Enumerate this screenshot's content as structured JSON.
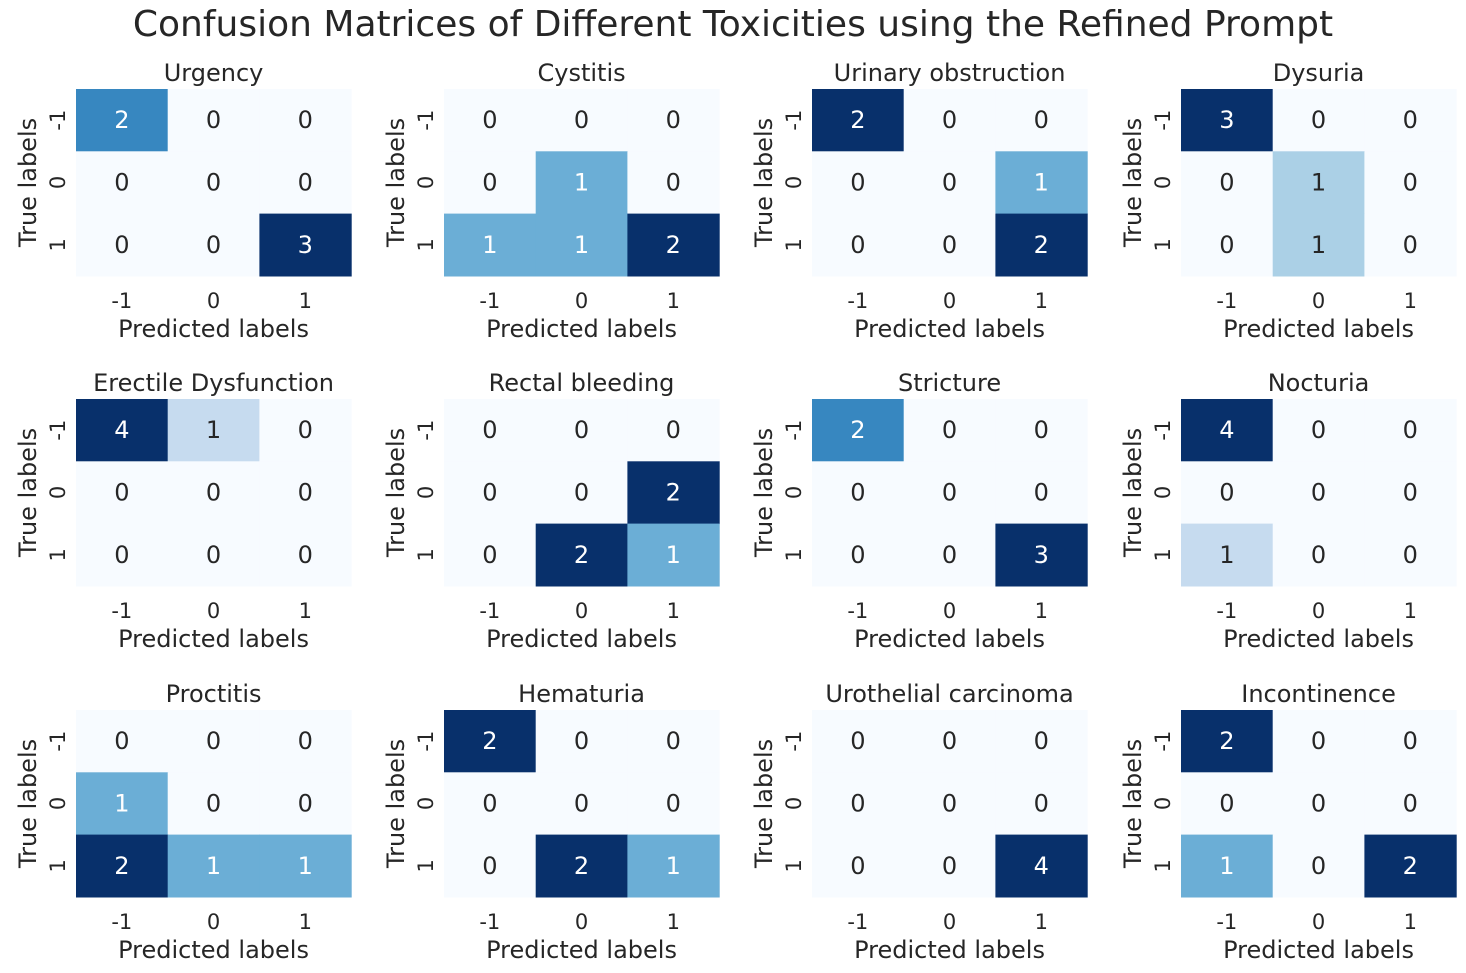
{
  "figure": {
    "title": "Confusion Matrices of Different Toxicities using the Refined Prompt"
  },
  "chart_data": [
    {
      "type": "heatmap",
      "title": "Urgency",
      "xlabel": "Predicted labels",
      "ylabel": "True labels",
      "x_tick_labels": [
        "-1",
        "0",
        "1"
      ],
      "y_tick_labels": [
        "-1",
        "0",
        "1"
      ],
      "matrix": [
        [
          2,
          0,
          0
        ],
        [
          0,
          0,
          0
        ],
        [
          0,
          0,
          3
        ]
      ],
      "colormap": "Blues"
    },
    {
      "type": "heatmap",
      "title": "Cystitis",
      "xlabel": "Predicted labels",
      "ylabel": "True labels",
      "x_tick_labels": [
        "-1",
        "0",
        "1"
      ],
      "y_tick_labels": [
        "-1",
        "0",
        "1"
      ],
      "matrix": [
        [
          0,
          0,
          0
        ],
        [
          0,
          1,
          0
        ],
        [
          1,
          1,
          2
        ]
      ],
      "colormap": "Blues"
    },
    {
      "type": "heatmap",
      "title": "Urinary obstruction",
      "xlabel": "Predicted labels",
      "ylabel": "True labels",
      "x_tick_labels": [
        "-1",
        "0",
        "1"
      ],
      "y_tick_labels": [
        "-1",
        "0",
        "1"
      ],
      "matrix": [
        [
          2,
          0,
          0
        ],
        [
          0,
          0,
          1
        ],
        [
          0,
          0,
          2
        ]
      ],
      "colormap": "Blues"
    },
    {
      "type": "heatmap",
      "title": "Dysuria",
      "xlabel": "Predicted labels",
      "ylabel": "True labels",
      "x_tick_labels": [
        "-1",
        "0",
        "1"
      ],
      "y_tick_labels": [
        "-1",
        "0",
        "1"
      ],
      "matrix": [
        [
          3,
          0,
          0
        ],
        [
          0,
          1,
          0
        ],
        [
          0,
          1,
          0
        ]
      ],
      "colormap": "Blues"
    },
    {
      "type": "heatmap",
      "title": "Erectile Dysfunction",
      "xlabel": "Predicted labels",
      "ylabel": "True labels",
      "x_tick_labels": [
        "-1",
        "0",
        "1"
      ],
      "y_tick_labels": [
        "-1",
        "0",
        "1"
      ],
      "matrix": [
        [
          4,
          1,
          0
        ],
        [
          0,
          0,
          0
        ],
        [
          0,
          0,
          0
        ]
      ],
      "colormap": "Blues"
    },
    {
      "type": "heatmap",
      "title": "Rectal bleeding",
      "xlabel": "Predicted labels",
      "ylabel": "True labels",
      "x_tick_labels": [
        "-1",
        "0",
        "1"
      ],
      "y_tick_labels": [
        "-1",
        "0",
        "1"
      ],
      "matrix": [
        [
          0,
          0,
          0
        ],
        [
          0,
          0,
          2
        ],
        [
          0,
          2,
          1
        ]
      ],
      "colormap": "Blues"
    },
    {
      "type": "heatmap",
      "title": "Stricture",
      "xlabel": "Predicted labels",
      "ylabel": "True labels",
      "x_tick_labels": [
        "-1",
        "0",
        "1"
      ],
      "y_tick_labels": [
        "-1",
        "0",
        "1"
      ],
      "matrix": [
        [
          2,
          0,
          0
        ],
        [
          0,
          0,
          0
        ],
        [
          0,
          0,
          3
        ]
      ],
      "colormap": "Blues"
    },
    {
      "type": "heatmap",
      "title": "Nocturia",
      "xlabel": "Predicted labels",
      "ylabel": "True labels",
      "x_tick_labels": [
        "-1",
        "0",
        "1"
      ],
      "y_tick_labels": [
        "-1",
        "0",
        "1"
      ],
      "matrix": [
        [
          4,
          0,
          0
        ],
        [
          0,
          0,
          0
        ],
        [
          1,
          0,
          0
        ]
      ],
      "colormap": "Blues"
    },
    {
      "type": "heatmap",
      "title": "Proctitis",
      "xlabel": "Predicted labels",
      "ylabel": "True labels",
      "x_tick_labels": [
        "-1",
        "0",
        "1"
      ],
      "y_tick_labels": [
        "-1",
        "0",
        "1"
      ],
      "matrix": [
        [
          0,
          0,
          0
        ],
        [
          1,
          0,
          0
        ],
        [
          2,
          1,
          1
        ]
      ],
      "colormap": "Blues"
    },
    {
      "type": "heatmap",
      "title": "Hematuria",
      "xlabel": "Predicted labels",
      "ylabel": "True labels",
      "x_tick_labels": [
        "-1",
        "0",
        "1"
      ],
      "y_tick_labels": [
        "-1",
        "0",
        "1"
      ],
      "matrix": [
        [
          2,
          0,
          0
        ],
        [
          0,
          0,
          0
        ],
        [
          0,
          2,
          1
        ]
      ],
      "colormap": "Blues"
    },
    {
      "type": "heatmap",
      "title": "Urothelial carcinoma",
      "xlabel": "Predicted labels",
      "ylabel": "True labels",
      "x_tick_labels": [
        "-1",
        "0",
        "1"
      ],
      "y_tick_labels": [
        "-1",
        "0",
        "1"
      ],
      "matrix": [
        [
          0,
          0,
          0
        ],
        [
          0,
          0,
          0
        ],
        [
          0,
          0,
          4
        ]
      ],
      "colormap": "Blues"
    },
    {
      "type": "heatmap",
      "title": "Incontinence",
      "xlabel": "Predicted labels",
      "ylabel": "True labels",
      "x_tick_labels": [
        "-1",
        "0",
        "1"
      ],
      "y_tick_labels": [
        "-1",
        "0",
        "1"
      ],
      "matrix": [
        [
          2,
          0,
          0
        ],
        [
          0,
          0,
          0
        ],
        [
          1,
          0,
          2
        ]
      ],
      "colormap": "Blues"
    }
  ]
}
